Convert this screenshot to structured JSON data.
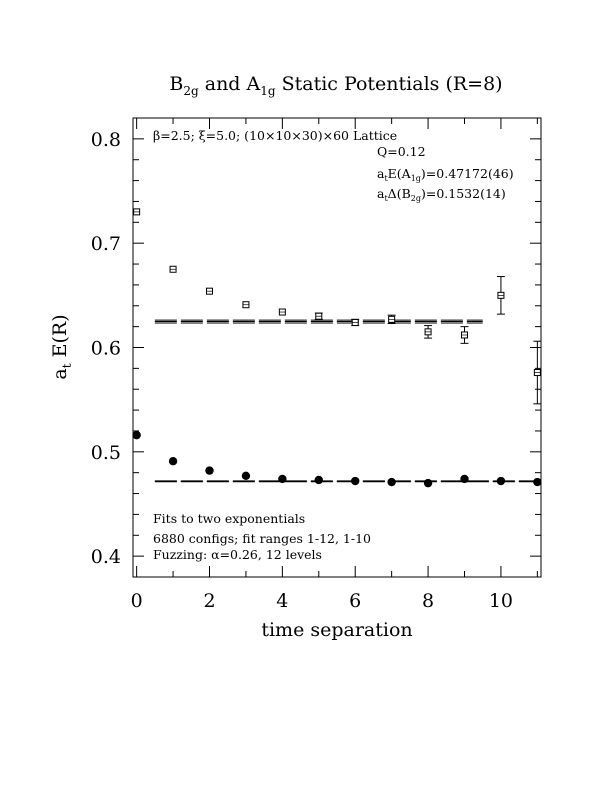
{
  "chart_data": {
    "type": "scatter",
    "title_parts": {
      "b": "B",
      "b_sub": "2g",
      "and": " and A",
      "a_sub": "1g",
      "rest": " Static Potentials (R=8)"
    },
    "xlabel": "time separation",
    "ylabel_parts": {
      "a": "a",
      "a_sub": "t",
      "rest": " E(R)"
    },
    "xlim": [
      -0.1,
      11.1
    ],
    "ylim": [
      0.38,
      0.82
    ],
    "x_ticks": [
      0,
      2,
      4,
      6,
      8,
      10
    ],
    "y_ticks": [
      0.4,
      0.5,
      0.6,
      0.7,
      0.8
    ],
    "x_tick_labels": [
      "0",
      "2",
      "4",
      "6",
      "8",
      "10"
    ],
    "y_tick_labels": [
      "0.4",
      "0.5",
      "0.6",
      "0.7",
      "0.8"
    ],
    "annotations": {
      "lattice": "β=2.5; ξ=5.0; (10×10×30)×60 Lattice",
      "q": "Q=0.12",
      "ea1g_a": "a",
      "ea1g_t": "t",
      "ea1g_mid": "E(A",
      "ea1g_sub": "1g",
      "ea1g_val": ")=0.47172(46)",
      "db2g_a": "a",
      "db2g_t": "t",
      "db2g_mid": "Δ(B",
      "db2g_sub": "2g",
      "db2g_val": ")=0.1532(14)",
      "fits": "Fits to two exponentials",
      "configs": "6880 configs; fit ranges 1-12, 1-10",
      "fuzzing": "Fuzzing: α=0.26, 12 levels"
    },
    "series": [
      {
        "name": "A1g",
        "marker": "filled-circle",
        "x": [
          0,
          1,
          2,
          3,
          4,
          5,
          6,
          7,
          8,
          9,
          10,
          11
        ],
        "y": [
          0.516,
          0.491,
          0.482,
          0.477,
          0.474,
          0.473,
          0.472,
          0.471,
          0.47,
          0.474,
          0.472,
          0.471
        ],
        "err": [
          0.002,
          0.002,
          0.002,
          0.002,
          0.002,
          0.002,
          0.002,
          0.002,
          0.002,
          0.002,
          0.002,
          0.002
        ]
      },
      {
        "name": "B2g",
        "marker": "open-square",
        "x": [
          0,
          1,
          2,
          3,
          4,
          5,
          6,
          7,
          8,
          9,
          10,
          11
        ],
        "y": [
          0.73,
          0.675,
          0.654,
          0.641,
          0.634,
          0.63,
          0.624,
          0.627,
          0.615,
          0.612,
          0.65,
          0.576
        ],
        "err": [
          0.002,
          0.002,
          0.002,
          0.002,
          0.002,
          0.003,
          0.003,
          0.004,
          0.006,
          0.008,
          0.018,
          0.03
        ]
      }
    ],
    "fit_lines": [
      {
        "name": "A1g fit",
        "x": [
          0.5,
          11.0
        ],
        "center": 0.47172,
        "err": 0.00046
      },
      {
        "name": "B2g fit",
        "x": [
          0.5,
          9.5
        ],
        "center": 0.6249,
        "err": 0.0014
      }
    ]
  }
}
